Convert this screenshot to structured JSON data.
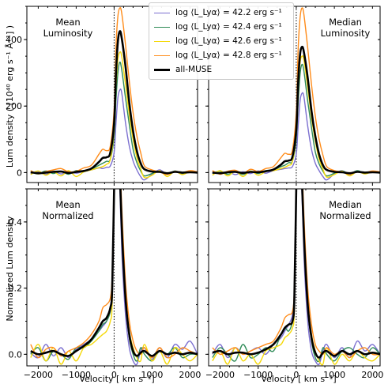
{
  "figure": {
    "ylabel_top": "Lum density ( [10⁴⁰ erg s⁻¹ Å⁻¹] )",
    "ylabel_bottom": "Normalized Lum density",
    "xlabel": "Velocity [ km s⁻¹]"
  },
  "legend": {
    "entries": [
      {
        "label": "log ⟨L_Lyα⟩ = 42.2 erg s⁻¹",
        "color": "#7b6fd0"
      },
      {
        "label": "log ⟨L_Lyα⟩ = 42.4 erg s⁻¹",
        "color": "#2e8b57"
      },
      {
        "label": "log ⟨L_Lyα⟩ = 42.6 erg s⁻¹",
        "color": "#f5d90a"
      },
      {
        "label": "log ⟨L_Lyα⟩ = 42.8 erg s⁻¹",
        "color": "#ff8c1a"
      },
      {
        "label": "all-MUSE",
        "color": "#000000"
      }
    ]
  },
  "chart_data": [
    {
      "type": "line",
      "annotation": [
        "Mean",
        "Luminosity"
      ],
      "xlabel": "",
      "ylabel": "Lum density ( [10⁴⁰ erg s⁻¹ Å⁻¹] )",
      "xlim": [
        -2300,
        2200
      ],
      "ylim": [
        -30,
        500
      ],
      "xticks": [
        -2000,
        -1000,
        0,
        1000,
        2000
      ],
      "xtick_labels": [],
      "yticks": [
        0,
        200,
        400
      ],
      "ytick_labels": [
        "0",
        "200",
        "400"
      ],
      "vline_x": 0,
      "x": [
        -2200,
        -2000,
        -1800,
        -1600,
        -1400,
        -1200,
        -1000,
        -800,
        -600,
        -400,
        -300,
        -200,
        -100,
        0,
        50,
        100,
        150,
        200,
        300,
        400,
        500,
        600,
        700,
        800,
        1000,
        1200,
        1400,
        1600,
        1800,
        2000,
        2200
      ],
      "series": [
        {
          "name": "42.2",
          "color": "#7b6fd0",
          "width": 1.4,
          "values": [
            -3,
            2,
            -6,
            4,
            -4,
            3,
            -2,
            4,
            8,
            14,
            12,
            16,
            20,
            60,
            150,
            225,
            248,
            240,
            150,
            80,
            35,
            8,
            -12,
            -22,
            -5,
            8,
            -5,
            3,
            -4,
            2,
            0
          ]
        },
        {
          "name": "42.4",
          "color": "#2e8b57",
          "width": 1.4,
          "values": [
            2,
            -4,
            5,
            -3,
            4,
            -5,
            6,
            3,
            10,
            22,
            28,
            34,
            40,
            110,
            220,
            300,
            332,
            310,
            225,
            145,
            70,
            30,
            5,
            -10,
            -3,
            4,
            -6,
            5,
            -2,
            3,
            0
          ]
        },
        {
          "name": "42.6",
          "color": "#f5d90a",
          "width": 1.4,
          "values": [
            -6,
            5,
            -8,
            3,
            -10,
            6,
            -12,
            2,
            8,
            15,
            18,
            25,
            40,
            130,
            260,
            340,
            362,
            350,
            265,
            175,
            100,
            45,
            12,
            -15,
            -8,
            6,
            -12,
            4,
            -6,
            3,
            -2
          ]
        },
        {
          "name": "42.8",
          "color": "#ff8c1a",
          "width": 1.4,
          "values": [
            6,
            -4,
            3,
            8,
            12,
            2,
            4,
            14,
            22,
            55,
            70,
            66,
            80,
            190,
            380,
            470,
            495,
            480,
            385,
            275,
            180,
            110,
            60,
            20,
            8,
            2,
            -6,
            4,
            0,
            6,
            2
          ]
        },
        {
          "name": "all-MUSE",
          "color": "#000000",
          "width": 2.6,
          "values": [
            1,
            -2,
            0,
            2,
            3,
            -1,
            2,
            5,
            12,
            32,
            44,
            46,
            60,
            150,
            300,
            395,
            425,
            405,
            320,
            210,
            125,
            65,
            28,
            10,
            3,
            2,
            -2,
            2,
            0,
            1,
            0
          ]
        }
      ]
    },
    {
      "type": "line",
      "annotation": [
        "Median",
        "Luminosity"
      ],
      "xlabel": "",
      "ylabel": "",
      "xlim": [
        -2300,
        2200
      ],
      "ylim": [
        -30,
        500
      ],
      "xticks": [
        -2000,
        -1000,
        0,
        1000,
        2000
      ],
      "xtick_labels": [],
      "yticks": [
        0,
        200,
        400
      ],
      "ytick_labels": [],
      "vline_x": 0,
      "x": [
        -2200,
        -2000,
        -1800,
        -1600,
        -1400,
        -1200,
        -1000,
        -800,
        -600,
        -400,
        -300,
        -200,
        -100,
        0,
        50,
        100,
        150,
        200,
        300,
        400,
        500,
        600,
        700,
        800,
        1000,
        1200,
        1400,
        1600,
        1800,
        2000,
        2200
      ],
      "series": [
        {
          "name": "42.2",
          "color": "#7b6fd0",
          "width": 1.4,
          "values": [
            2,
            -4,
            3,
            -6,
            2,
            -3,
            5,
            -2,
            6,
            10,
            12,
            14,
            18,
            55,
            140,
            215,
            238,
            228,
            140,
            70,
            28,
            6,
            -12,
            -22,
            -4,
            6,
            -6,
            3,
            -3,
            2,
            0
          ]
        },
        {
          "name": "42.4",
          "color": "#2e8b57",
          "width": 1.4,
          "values": [
            -2,
            4,
            -5,
            3,
            -6,
            4,
            -3,
            6,
            8,
            18,
            22,
            30,
            35,
            100,
            210,
            295,
            325,
            305,
            215,
            135,
            62,
            26,
            4,
            -10,
            -2,
            5,
            -4,
            6,
            -2,
            3,
            0
          ]
        },
        {
          "name": "42.6",
          "color": "#f5d90a",
          "width": 1.4,
          "values": [
            -8,
            6,
            -10,
            4,
            -12,
            5,
            -8,
            3,
            6,
            12,
            16,
            22,
            34,
            120,
            250,
            330,
            350,
            338,
            255,
            165,
            95,
            40,
            10,
            -14,
            -6,
            4,
            -10,
            3,
            -4,
            2,
            -2
          ]
        },
        {
          "name": "42.8",
          "color": "#ff8c1a",
          "width": 1.4,
          "values": [
            6,
            -5,
            4,
            7,
            -3,
            10,
            3,
            12,
            18,
            45,
            58,
            55,
            68,
            180,
            370,
            465,
            495,
            475,
            375,
            265,
            170,
            100,
            52,
            18,
            6,
            2,
            -5,
            3,
            0,
            5,
            2
          ]
        },
        {
          "name": "all-MUSE",
          "color": "#000000",
          "width": 2.6,
          "values": [
            0,
            -2,
            1,
            2,
            -1,
            2,
            1,
            4,
            9,
            24,
            34,
            36,
            48,
            130,
            270,
            355,
            378,
            362,
            285,
            185,
            110,
            55,
            22,
            8,
            2,
            1,
            -2,
            2,
            0,
            1,
            0
          ]
        }
      ]
    },
    {
      "type": "line",
      "annotation": [
        "Mean",
        "Normalized"
      ],
      "xlabel": "Velocity [ km s⁻¹]",
      "ylabel": "Normalized Lum density",
      "xlim": [
        -2300,
        2200
      ],
      "ylim": [
        -0.035,
        0.5
      ],
      "xticks": [
        -2000,
        -1000,
        0,
        1000,
        2000
      ],
      "xtick_labels": [
        "−2000",
        "−1000",
        "0",
        "1000",
        "2000"
      ],
      "yticks": [
        0,
        0.2,
        0.4
      ],
      "ytick_labels": [
        "0.0",
        "0.2",
        "0.4"
      ],
      "vline_x": 0,
      "x": [
        -2200,
        -2000,
        -1800,
        -1600,
        -1400,
        -1200,
        -1000,
        -800,
        -600,
        -400,
        -300,
        -200,
        -100,
        -50,
        0,
        50,
        100,
        200,
        300,
        400,
        500,
        600,
        700,
        800,
        1000,
        1200,
        1400,
        1600,
        1800,
        2000,
        2200
      ],
      "series": [
        {
          "name": "42.2",
          "color": "#7b6fd0",
          "width": 1.4,
          "values": [
            0.005,
            -0.01,
            0.03,
            -0.005,
            0.02,
            -0.01,
            0.015,
            0.03,
            0.045,
            0.07,
            0.085,
            0.1,
            0.14,
            0.22,
            0.5,
            0.8,
            0.7,
            0.32,
            0.12,
            0.02,
            -0.02,
            -0.03,
            0.01,
            0.02,
            -0.015,
            0.02,
            -0.01,
            0.03,
            0.015,
            0.04,
            0.0
          ]
        },
        {
          "name": "42.4",
          "color": "#2e8b57",
          "width": 1.4,
          "values": [
            0.0,
            0.02,
            -0.02,
            0.01,
            0.0,
            -0.015,
            0.02,
            0.02,
            0.04,
            0.07,
            0.09,
            0.1,
            0.13,
            0.2,
            0.5,
            0.8,
            0.7,
            0.36,
            0.16,
            0.05,
            0.0,
            -0.02,
            0.02,
            0.0,
            -0.02,
            0.01,
            0.0,
            0.02,
            -0.01,
            0.0,
            0.0
          ]
        },
        {
          "name": "42.6",
          "color": "#f5d90a",
          "width": 1.4,
          "values": [
            -0.01,
            0.03,
            -0.02,
            0.02,
            -0.03,
            0.01,
            -0.02,
            0.02,
            0.03,
            0.05,
            0.06,
            0.07,
            0.1,
            0.16,
            0.5,
            0.8,
            0.72,
            0.4,
            0.18,
            0.07,
            0.02,
            -0.01,
            -0.02,
            0.03,
            -0.02,
            0.01,
            -0.03,
            0.02,
            0.0,
            -0.02,
            0.0
          ]
        },
        {
          "name": "42.8",
          "color": "#ff8c1a",
          "width": 1.4,
          "values": [
            0.03,
            -0.01,
            0.015,
            0.02,
            -0.005,
            0.01,
            0.02,
            0.035,
            0.06,
            0.1,
            0.14,
            0.15,
            0.17,
            0.24,
            0.5,
            0.8,
            0.75,
            0.45,
            0.22,
            0.1,
            0.04,
            0.01,
            0.0,
            0.02,
            -0.01,
            0.02,
            -0.01,
            0.0,
            0.02,
            0.01,
            0.0
          ]
        },
        {
          "name": "all-MUSE",
          "color": "#000000",
          "width": 2.6,
          "values": [
            0.01,
            0.0,
            0.005,
            0.01,
            0.0,
            -0.005,
            0.01,
            0.025,
            0.045,
            0.08,
            0.1,
            0.11,
            0.14,
            0.2,
            0.5,
            0.8,
            0.72,
            0.39,
            0.17,
            0.06,
            0.01,
            -0.005,
            0.005,
            0.01,
            -0.005,
            0.01,
            0.0,
            0.005,
            0.0,
            0.005,
            0.0
          ]
        }
      ]
    },
    {
      "type": "line",
      "annotation": [
        "Median",
        "Normalized"
      ],
      "xlabel": "Velocity [ km s⁻¹]",
      "ylabel": "",
      "xlim": [
        -2300,
        2200
      ],
      "ylim": [
        -0.035,
        0.5
      ],
      "xticks": [
        -2000,
        -1000,
        0,
        1000,
        2000
      ],
      "xtick_labels": [
        "−2000",
        "−1000",
        "0",
        "1000",
        "2000"
      ],
      "yticks": [
        0,
        0.2,
        0.4
      ],
      "ytick_labels": [],
      "vline_x": 0,
      "x": [
        -2200,
        -2000,
        -1800,
        -1600,
        -1400,
        -1200,
        -1000,
        -800,
        -600,
        -400,
        -300,
        -200,
        -100,
        -50,
        0,
        50,
        100,
        200,
        300,
        400,
        500,
        600,
        700,
        800,
        1000,
        1200,
        1400,
        1600,
        1800,
        2000,
        2200
      ],
      "series": [
        {
          "name": "42.2",
          "color": "#7b6fd0",
          "width": 1.4,
          "values": [
            0.0,
            0.03,
            -0.01,
            0.02,
            0.0,
            0.01,
            0.02,
            0.0,
            0.03,
            0.05,
            0.07,
            0.09,
            0.12,
            0.2,
            0.5,
            0.8,
            0.68,
            0.3,
            0.1,
            0.01,
            -0.02,
            -0.03,
            0.01,
            0.03,
            -0.01,
            0.02,
            -0.01,
            0.04,
            0.01,
            0.03,
            0.0
          ]
        },
        {
          "name": "42.4",
          "color": "#2e8b57",
          "width": 1.4,
          "values": [
            -0.01,
            0.02,
            0.0,
            -0.02,
            0.03,
            -0.01,
            0.0,
            0.02,
            0.01,
            0.06,
            0.08,
            0.07,
            0.1,
            0.16,
            0.5,
            0.8,
            0.7,
            0.34,
            0.14,
            0.04,
            -0.01,
            -0.02,
            0.02,
            0.0,
            -0.02,
            0.01,
            0.02,
            0.0,
            -0.01,
            0.02,
            0.0
          ]
        },
        {
          "name": "42.6",
          "color": "#f5d90a",
          "width": 1.4,
          "values": [
            -0.02,
            0.01,
            -0.03,
            0.02,
            -0.02,
            0.0,
            -0.03,
            0.01,
            0.02,
            0.03,
            0.05,
            0.06,
            0.08,
            0.14,
            0.5,
            0.8,
            0.72,
            0.38,
            0.16,
            0.06,
            0.01,
            -0.02,
            -0.03,
            0.02,
            -0.03,
            0.0,
            -0.02,
            0.01,
            -0.01,
            -0.02,
            0.0
          ]
        },
        {
          "name": "42.8",
          "color": "#ff8c1a",
          "width": 1.4,
          "values": [
            0.02,
            0.0,
            0.01,
            0.02,
            0.0,
            0.01,
            0.02,
            0.03,
            0.04,
            0.08,
            0.11,
            0.12,
            0.13,
            0.2,
            0.5,
            0.8,
            0.74,
            0.42,
            0.2,
            0.09,
            0.03,
            0.01,
            0.0,
            0.02,
            0.0,
            0.01,
            -0.01,
            0.01,
            0.02,
            0.0,
            0.0
          ]
        },
        {
          "name": "all-MUSE",
          "color": "#000000",
          "width": 2.6,
          "values": [
            0.005,
            0.01,
            0.0,
            0.005,
            0.005,
            0.0,
            0.005,
            0.015,
            0.03,
            0.06,
            0.08,
            0.09,
            0.1,
            0.17,
            0.5,
            0.8,
            0.7,
            0.36,
            0.15,
            0.05,
            0.005,
            -0.01,
            0.005,
            0.01,
            -0.005,
            0.01,
            0.0,
            0.01,
            0.0,
            0.005,
            0.0
          ]
        }
      ]
    }
  ]
}
